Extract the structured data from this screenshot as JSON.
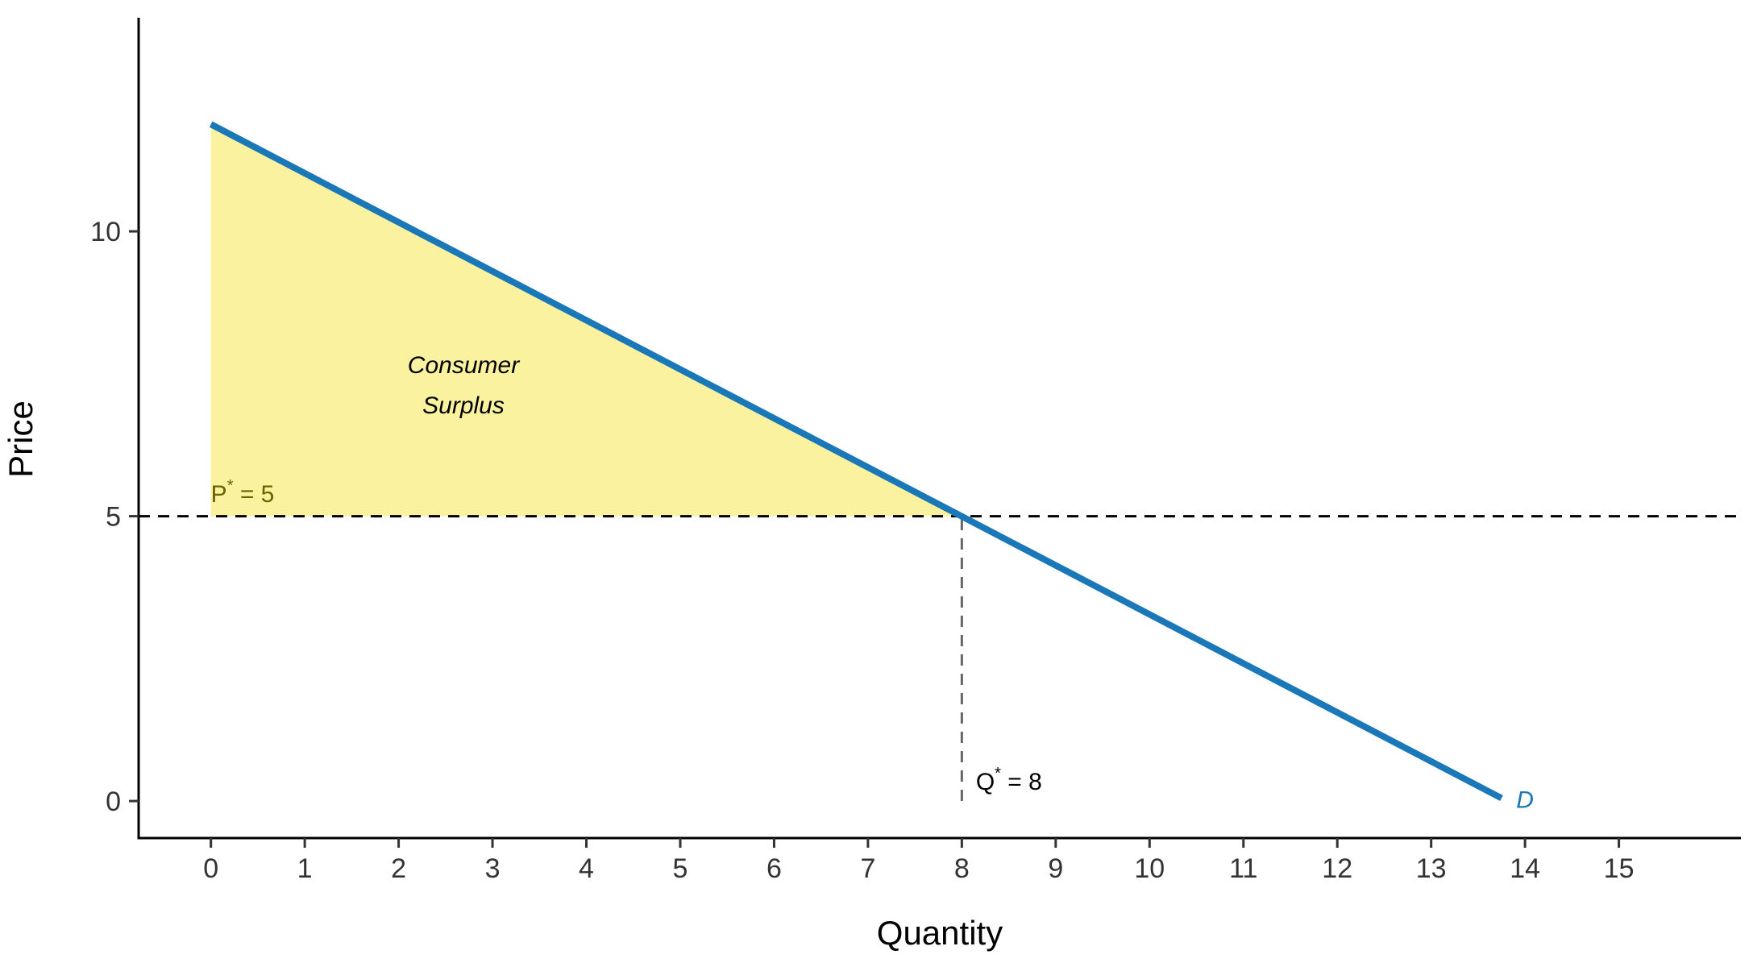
{
  "chart_data": {
    "type": "line",
    "title": "",
    "xlabel": "Quantity",
    "ylabel": "Price",
    "xlim": [
      -0.77,
      16.3
    ],
    "ylim": [
      -0.65,
      13.75
    ],
    "x_ticks": [
      0,
      1,
      2,
      3,
      4,
      5,
      6,
      7,
      8,
      9,
      10,
      11,
      12,
      13,
      14,
      15
    ],
    "y_ticks": [
      0,
      5,
      10
    ],
    "grid": false,
    "series": [
      {
        "name": "D",
        "color": "#1a78b8",
        "x": [
          0,
          13.75
        ],
        "y": [
          11.88,
          0.05
        ]
      }
    ],
    "equilibrium": {
      "price": 5,
      "quantity": 8
    },
    "shaded_region": {
      "label": "Consumer Surplus",
      "label_line1": "Consumer",
      "label_line2": "Surplus",
      "color": "#fbf29f",
      "vertices": [
        [
          0,
          11.88
        ],
        [
          0,
          5
        ],
        [
          8,
          5
        ]
      ]
    },
    "annotations": {
      "price": {
        "prefix": "P",
        "star": "*",
        "suffix": " = 5",
        "x": 0,
        "y": 5.25,
        "color": "#6b6200"
      },
      "quantity": {
        "prefix": "Q",
        "star": "*",
        "suffix": " = 8",
        "x": 8.15,
        "y": 0.2,
        "color": "#000000"
      },
      "curve": {
        "text": "D",
        "x": 14.0,
        "y": 0.05,
        "color": "#1a78b8"
      }
    },
    "reference_lines": [
      {
        "orientation": "horizontal",
        "y": 5,
        "style": "dashed",
        "color": "#000000"
      },
      {
        "orientation": "vertical",
        "x": 8,
        "y_from": 0,
        "y_to": 5,
        "style": "dashed",
        "color": "#666666"
      }
    ]
  }
}
